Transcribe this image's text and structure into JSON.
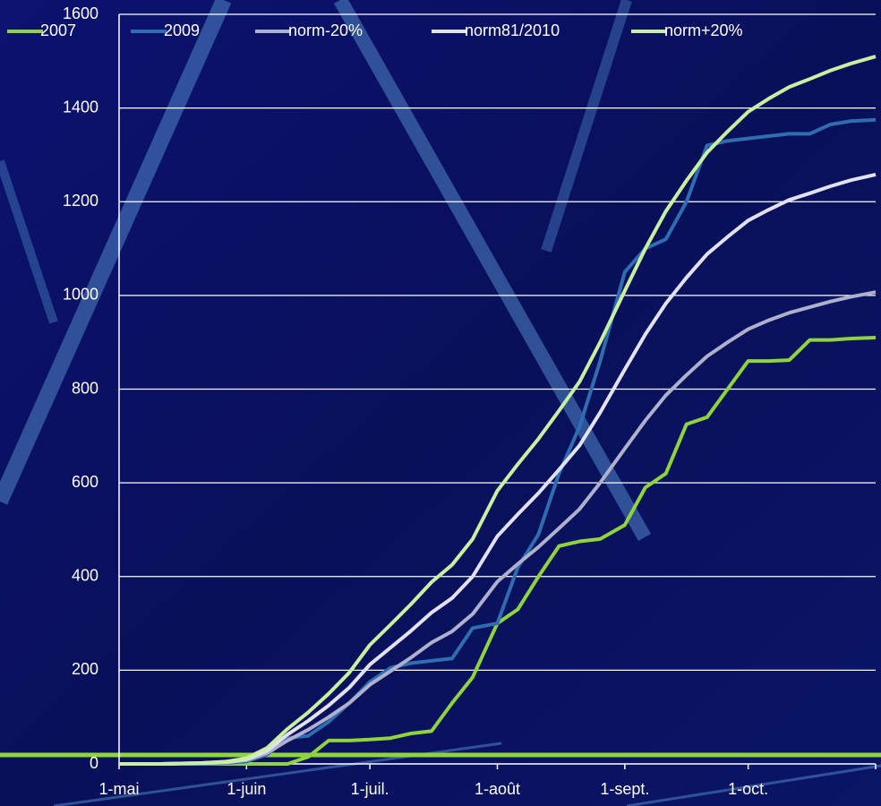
{
  "chart_data": {
    "type": "line",
    "x": [
      0,
      10,
      20,
      26,
      31,
      36,
      41,
      46,
      51,
      56,
      61,
      66,
      71,
      76,
      81,
      86,
      92,
      97,
      102,
      107,
      112,
      117,
      123,
      128,
      133,
      138,
      143,
      148,
      153,
      158,
      163,
      168,
      173,
      178,
      184
    ],
    "xlim": [
      0,
      184
    ],
    "xticks": [
      {
        "value": 0,
        "label": "1-mai"
      },
      {
        "value": 31,
        "label": "1-juin"
      },
      {
        "value": 61,
        "label": "1-juil."
      },
      {
        "value": 92,
        "label": "1-août"
      },
      {
        "value": 123,
        "label": "1-sept."
      },
      {
        "value": 153,
        "label": "1-oct."
      }
    ],
    "ylim": [
      0,
      1600
    ],
    "yticks": [
      0,
      200,
      400,
      600,
      800,
      1000,
      1200,
      1400,
      1600
    ],
    "grid": true,
    "series": [
      {
        "name": "2007",
        "color": "#8fd43c",
        "values": [
          0,
          0,
          0,
          0,
          0,
          0,
          0,
          15,
          50,
          50,
          52,
          55,
          65,
          70,
          130,
          185,
          300,
          330,
          400,
          465,
          475,
          480,
          510,
          590,
          620,
          725,
          740,
          800,
          860,
          860,
          862,
          905,
          905,
          908,
          910
        ]
      },
      {
        "name": "2009",
        "color": "#2f6db0",
        "values": [
          0,
          0,
          0,
          2,
          5,
          20,
          55,
          60,
          90,
          130,
          175,
          205,
          215,
          220,
          225,
          290,
          300,
          420,
          490,
          620,
          720,
          860,
          1050,
          1100,
          1120,
          1200,
          1320,
          1330,
          1335,
          1340,
          1345,
          1345,
          1365,
          1372,
          1375
        ]
      },
      {
        "name": "norm-20%",
        "color": "#aeb0cc",
        "values": [
          0,
          0,
          1,
          3,
          8,
          23,
          50,
          73,
          100,
          130,
          169,
          198,
          227,
          259,
          283,
          320,
          389,
          427,
          463,
          503,
          544,
          600,
          673,
          733,
          787,
          830,
          870,
          900,
          928,
          947,
          963,
          975,
          987,
          997,
          1007
        ]
      },
      {
        "name": "norm81/2010",
        "color": "#e2e2ee",
        "values": [
          0,
          0,
          2,
          4,
          10,
          28,
          63,
          92,
          125,
          163,
          212,
          248,
          284,
          323,
          354,
          400,
          486,
          533,
          578,
          628,
          680,
          750,
          842,
          917,
          983,
          1038,
          1088,
          1125,
          1160,
          1183,
          1204,
          1218,
          1233,
          1246,
          1258
        ]
      },
      {
        "name": "norm+20%",
        "color": "#c8f0a0",
        "values": [
          0,
          0,
          2,
          5,
          12,
          34,
          75,
          110,
          150,
          195,
          254,
          297,
          341,
          388,
          425,
          480,
          583,
          640,
          694,
          754,
          816,
          900,
          1010,
          1100,
          1180,
          1245,
          1305,
          1350,
          1392,
          1420,
          1445,
          1462,
          1480,
          1495,
          1510
        ]
      }
    ]
  }
}
